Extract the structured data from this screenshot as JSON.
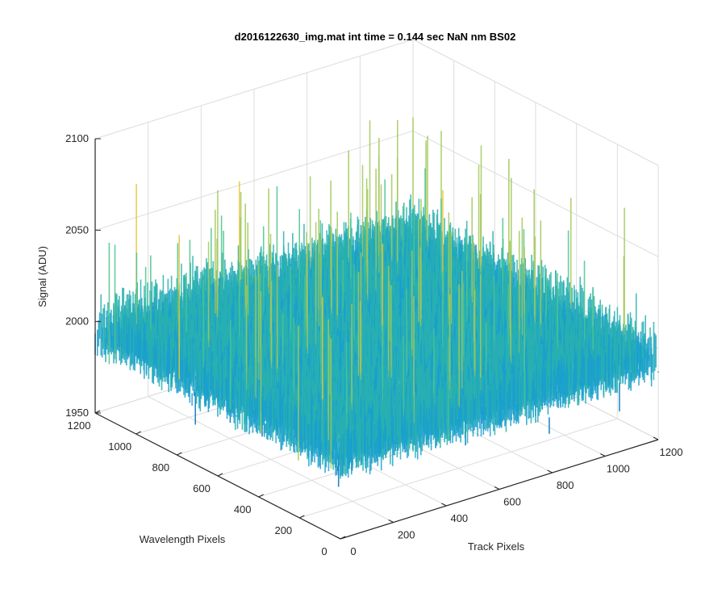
{
  "chart_data": {
    "type": "surface3d",
    "title": "d2016122630_img.mat int time = 0.144 sec  NaN nm BS02",
    "xlabel": "Track Pixels",
    "ylabel": "Wavelength Pixels",
    "zlabel": "Signal (ADU)",
    "xlim": [
      0,
      1200
    ],
    "ylim": [
      0,
      1200
    ],
    "zlim": [
      1950,
      2100
    ],
    "xticks": [
      "0",
      "200",
      "400",
      "600",
      "800",
      "1000",
      "1200"
    ],
    "yticks": [
      "0",
      "200",
      "400",
      "600",
      "800",
      "1000",
      "1200"
    ],
    "zticks": [
      "1950",
      "2000",
      "2050",
      "2100"
    ],
    "surface": {
      "baseline_adu": 2000,
      "noise_range_adu": [
        1965,
        2092
      ],
      "colormap": [
        "#0072bd",
        "#1aa0cc",
        "#29b0b0",
        "#4cc48e",
        "#a3c85a",
        "#e6c63a"
      ]
    },
    "grid": true
  }
}
